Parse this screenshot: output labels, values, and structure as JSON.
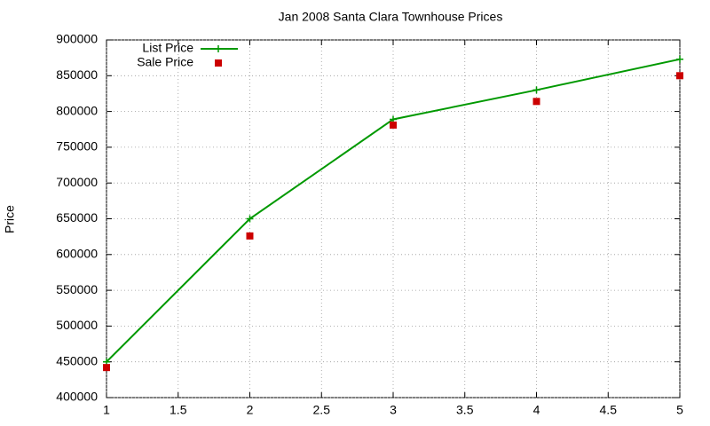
{
  "chart_data": {
    "type": "line",
    "title": "Jan 2008 Santa Clara Townhouse Prices",
    "y_label": "Price",
    "x": [
      1,
      2,
      3,
      4,
      5
    ],
    "series": [
      {
        "name": "List Price",
        "color": "#009900",
        "line": true,
        "marker": "plus",
        "values": [
          450000,
          650000,
          789000,
          830000,
          873000
        ]
      },
      {
        "name": "Sale Price",
        "color": "#cc0000",
        "line": false,
        "marker": "square",
        "values": [
          442000,
          626000,
          781000,
          814000,
          850000
        ]
      }
    ],
    "xlim": [
      1,
      5
    ],
    "xticks": [
      1,
      1.5,
      2,
      2.5,
      3,
      3.5,
      4,
      4.5,
      5
    ],
    "ylim": [
      400000,
      900000
    ],
    "yticks": [
      400000,
      450000,
      500000,
      550000,
      600000,
      650000,
      700000,
      750000,
      800000,
      850000,
      900000
    ],
    "grid": true,
    "legend": "top-left"
  }
}
